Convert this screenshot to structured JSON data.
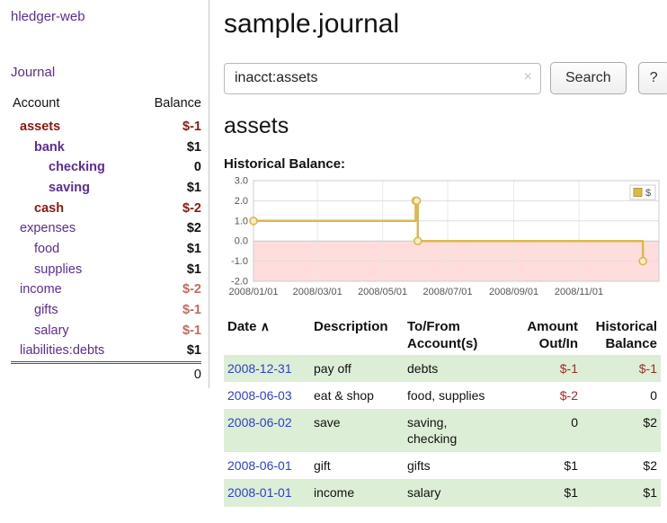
{
  "app": {
    "title": "hledger-web",
    "nav": {
      "journal": "Journal"
    }
  },
  "sidebar": {
    "accounts_table": {
      "col_account": "Account",
      "col_balance": "Balance",
      "rows": [
        {
          "name": "assets",
          "balance": "$-1",
          "level": 1,
          "in_query": true
        },
        {
          "name": "bank",
          "balance": "$1",
          "level": 2,
          "in_query": true
        },
        {
          "name": "checking",
          "balance": "0",
          "level": 3,
          "in_query": true
        },
        {
          "name": "saving",
          "balance": "$1",
          "level": 3,
          "in_query": true
        },
        {
          "name": "cash",
          "balance": "$-2",
          "level": 2,
          "in_query": true
        },
        {
          "name": "expenses",
          "balance": "$2",
          "level": 1,
          "in_query": false
        },
        {
          "name": "food",
          "balance": "$1",
          "level": 2,
          "in_query": false
        },
        {
          "name": "supplies",
          "balance": "$1",
          "level": 2,
          "in_query": false
        },
        {
          "name": "income",
          "balance": "$-2",
          "level": 1,
          "in_query": false
        },
        {
          "name": "gifts",
          "balance": "$-1",
          "level": 2,
          "in_query": false
        },
        {
          "name": "salary",
          "balance": "$-1",
          "level": 2,
          "in_query": false
        },
        {
          "name": "liabilities:debts",
          "balance": "$1",
          "level": 1,
          "in_query": false
        }
      ],
      "total": "0"
    }
  },
  "main": {
    "title": "sample.journal",
    "search": {
      "value": "inacct:assets",
      "clear_label": "×",
      "button_label": "Search",
      "help_label": "?"
    },
    "account_heading": "assets",
    "chart_title": "Historical Balance:",
    "register": {
      "headers": {
        "date": "Date",
        "sort_indicator": "∧",
        "description": "Description",
        "accounts": "To/From Account(s)",
        "amount": "Amount Out/In",
        "balance": "Historical Balance"
      },
      "rows": [
        {
          "date": "2008-12-31",
          "description": "pay off",
          "accounts": "debts",
          "amount": "$-1",
          "balance": "$-1"
        },
        {
          "date": "2008-06-03",
          "description": "eat & shop",
          "accounts": "food, supplies",
          "amount": "$-2",
          "balance": "0"
        },
        {
          "date": "2008-06-02",
          "description": "save",
          "accounts": "saving,\nchecking",
          "amount": "0",
          "balance": "$2"
        },
        {
          "date": "2008-06-01",
          "description": "gift",
          "accounts": "gifts",
          "amount": "$1",
          "balance": "$2"
        },
        {
          "date": "2008-01-01",
          "description": "income",
          "accounts": "salary",
          "amount": "$1",
          "balance": "$1"
        }
      ]
    }
  },
  "colors": {
    "link_purple": "#5c2d91",
    "link_blue": "#2b41cc",
    "negative_strong": "#8b1a10",
    "negative_soft": "#c46a62",
    "negative_table": "#a42c22",
    "row_green": "#ddeed6",
    "chart_line": "#d9b94e",
    "chart_negative_region": "#ffdddd"
  },
  "chart_data": {
    "type": "line",
    "step": true,
    "title": "Historical Balance:",
    "series": [
      {
        "name": "$",
        "points": [
          {
            "x": "2008-01-01",
            "y": 1
          },
          {
            "x": "2008-06-01",
            "y": 2
          },
          {
            "x": "2008-06-02",
            "y": 2
          },
          {
            "x": "2008-06-03",
            "y": 0
          },
          {
            "x": "2008-12-31",
            "y": -1
          }
        ]
      }
    ],
    "ylim": [
      -2.0,
      3.0
    ],
    "yticks": [
      3.0,
      2.0,
      1.0,
      0.0,
      -1.0,
      -2.0
    ],
    "xticks": [
      "2008-01-01",
      "2008-03-01",
      "2008-05-01",
      "2008-07-01",
      "2008-09-01",
      "2008-11-01"
    ],
    "xtick_label_format": "YYYY/MM/DD",
    "x_range": [
      "2008-01-01",
      "2009-01-15"
    ],
    "legend": {
      "label": "$",
      "position": "top-right"
    },
    "grid": true
  }
}
